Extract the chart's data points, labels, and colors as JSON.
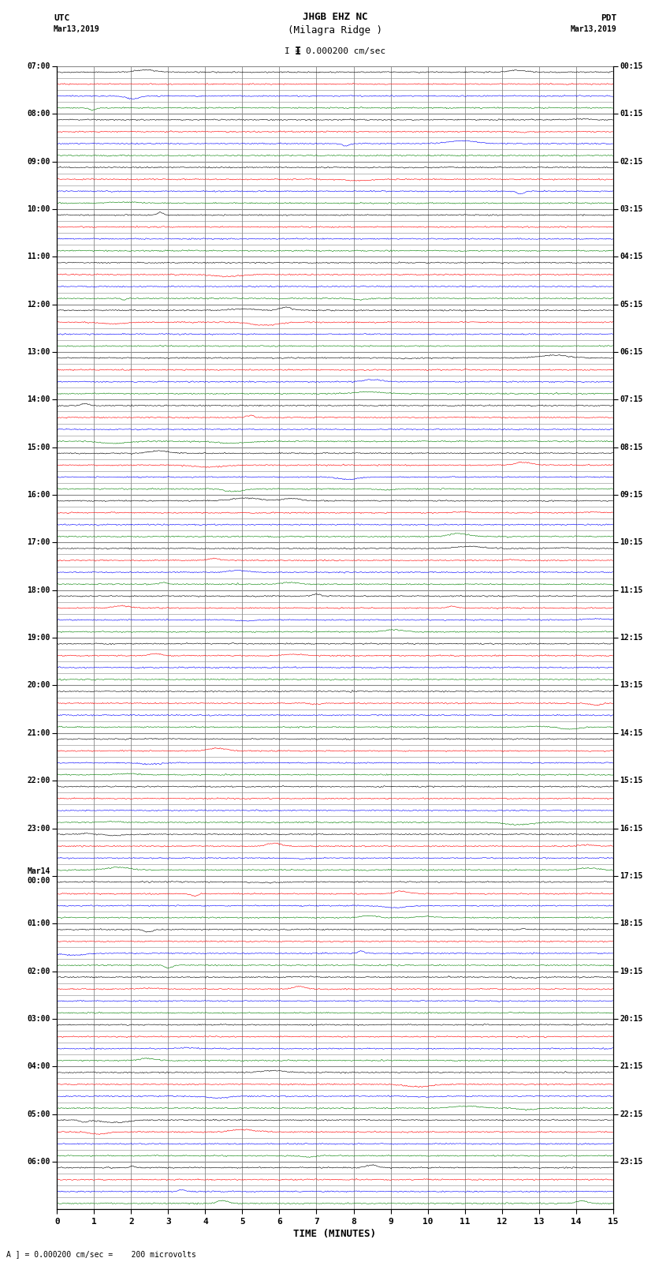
{
  "title_line1": "JHGB EHZ NC",
  "title_line2": "(Milagra Ridge )",
  "scale_text": "I = 0.000200 cm/sec",
  "footer_text": "A ] = 0.000200 cm/sec =    200 microvolts",
  "utc_label": "UTC",
  "pdt_label": "PDT",
  "utc_date": "Mar13,2019",
  "pdt_date": "Mar13,2019",
  "xlabel": "TIME (MINUTES)",
  "x_ticks": [
    0,
    1,
    2,
    3,
    4,
    5,
    6,
    7,
    8,
    9,
    10,
    11,
    12,
    13,
    14,
    15
  ],
  "utc_times_major": [
    "07:00",
    "08:00",
    "09:00",
    "10:00",
    "11:00",
    "12:00",
    "13:00",
    "14:00",
    "15:00",
    "16:00",
    "17:00",
    "18:00",
    "19:00",
    "20:00",
    "21:00",
    "22:00",
    "23:00",
    "Mar14\n00:00",
    "01:00",
    "02:00",
    "03:00",
    "04:00",
    "05:00",
    "06:00"
  ],
  "pdt_times_major": [
    "00:15",
    "01:15",
    "02:15",
    "03:15",
    "04:15",
    "05:15",
    "06:15",
    "07:15",
    "08:15",
    "09:15",
    "10:15",
    "11:15",
    "12:15",
    "13:15",
    "14:15",
    "15:15",
    "16:15",
    "17:15",
    "18:15",
    "19:15",
    "20:15",
    "21:15",
    "22:15",
    "23:15"
  ],
  "n_rows": 96,
  "n_minutes": 15,
  "colors_cycle": [
    "black",
    "red",
    "blue",
    "green"
  ],
  "background_color": "white",
  "grid_color": "#888888",
  "noise_amplitude": 0.04,
  "spike_amplitude": 0.25,
  "seed": 42
}
